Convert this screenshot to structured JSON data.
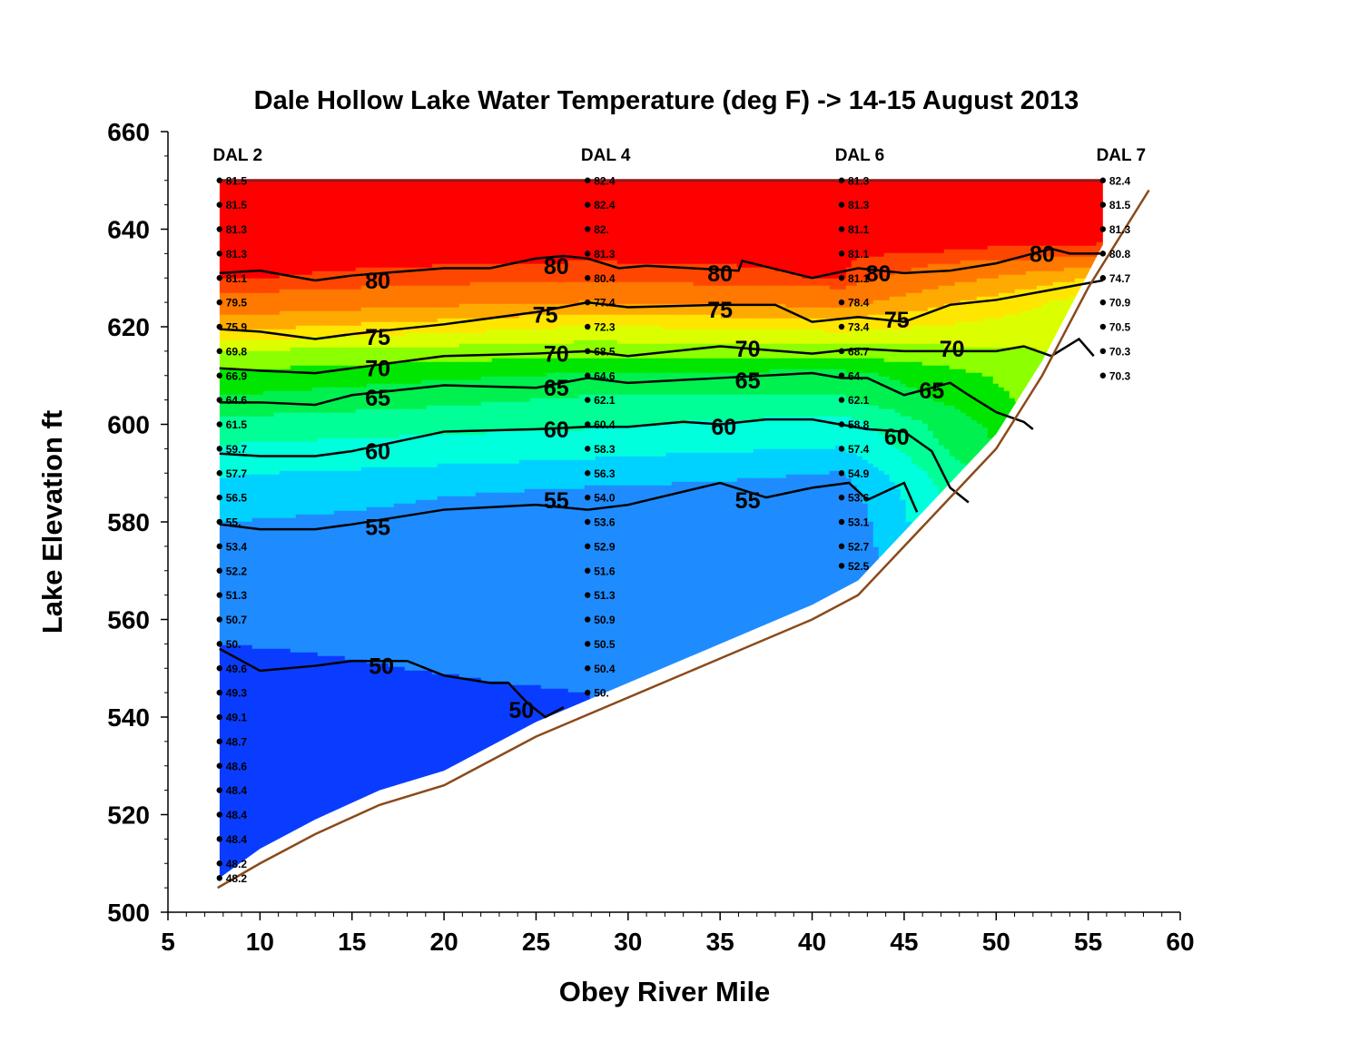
{
  "chart_data": {
    "type": "contour",
    "title": "Dale Hollow Lake Water Temperature (deg F)  ->  14-15 August 2013",
    "xlabel": "Obey River Mile",
    "ylabel": "Lake  Elevation  ft",
    "xlim": [
      5,
      60
    ],
    "ylim": [
      500,
      660
    ],
    "x_ticks": [
      5,
      10,
      15,
      20,
      25,
      30,
      35,
      40,
      45,
      50,
      55,
      60
    ],
    "y_ticks": [
      500,
      520,
      540,
      560,
      580,
      600,
      620,
      640,
      660
    ],
    "x_tick_labels": [
      "5",
      "10",
      "15",
      "20",
      "25",
      "30",
      "35",
      "40",
      "45",
      "50",
      "55",
      "60"
    ],
    "y_tick_labels": [
      "500",
      "520",
      "540",
      "560",
      "580",
      "600",
      "620",
      "640",
      "660"
    ],
    "color_bands": [
      {
        "min": 0,
        "max": 50,
        "color": "#0a3cff"
      },
      {
        "min": 50,
        "max": 55,
        "color": "#1e8cff"
      },
      {
        "min": 55,
        "max": 57.5,
        "color": "#00d2ff"
      },
      {
        "min": 57.5,
        "max": 60,
        "color": "#00ffdc"
      },
      {
        "min": 60,
        "max": 62.5,
        "color": "#00ff96"
      },
      {
        "min": 62.5,
        "max": 65,
        "color": "#00f050"
      },
      {
        "min": 65,
        "max": 67.5,
        "color": "#00e600"
      },
      {
        "min": 67.5,
        "max": 70,
        "color": "#8cff00"
      },
      {
        "min": 70,
        "max": 72.5,
        "color": "#dcff00"
      },
      {
        "min": 72.5,
        "max": 75,
        "color": "#ffe600"
      },
      {
        "min": 75,
        "max": 77.5,
        "color": "#ffaa00"
      },
      {
        "min": 77.5,
        "max": 80,
        "color": "#ff7800"
      },
      {
        "min": 80,
        "max": 81,
        "color": "#ff4600"
      },
      {
        "min": 81,
        "max": 90,
        "color": "#ff0000"
      }
    ],
    "bottom_profile": {
      "x": [
        7.7,
        10,
        13,
        16.5,
        20,
        25,
        27.5,
        30,
        35,
        40,
        42.5,
        45,
        47.5,
        50,
        52.5,
        55,
        58.3
      ],
      "elev": [
        505,
        510,
        516,
        522,
        526,
        536,
        540,
        544,
        552,
        560,
        565,
        575,
        585,
        595,
        610,
        628,
        648
      ]
    },
    "stations": [
      {
        "name": "DAL 2",
        "river_mile": 7.8,
        "elevations": [
          650,
          645,
          640,
          635,
          630,
          625,
          620,
          615,
          610,
          605,
          600,
          595,
          590,
          585,
          580,
          575,
          570,
          565,
          560,
          555,
          550,
          545,
          540,
          535,
          530,
          525,
          520,
          515,
          510,
          507
        ],
        "labels": [
          "81.5",
          "81.5",
          "81.3",
          "81.3",
          "81.1",
          "79.5",
          "75.9",
          "69.8",
          "66.9",
          "64.6",
          "61.5",
          "59.7",
          "57.7",
          "56.5",
          "55.",
          "53.4",
          "52.2",
          "51.3",
          "50.7",
          "50.",
          "49.6",
          "49.3",
          "49.1",
          "48.7",
          "48.6",
          "48.4",
          "48.4",
          "48.4",
          "48.2",
          "48.2"
        ]
      },
      {
        "name": "DAL 4",
        "river_mile": 27.8,
        "elevations": [
          650,
          645,
          640,
          635,
          630,
          625,
          620,
          615,
          610,
          605,
          600,
          595,
          590,
          585,
          580,
          575,
          570,
          565,
          560,
          555,
          550,
          545
        ],
        "labels": [
          "82.4",
          "82.4",
          "82.",
          "81.3",
          "80.4",
          "77.4",
          "72.3",
          "68.5",
          "64.6",
          "62.1",
          "60.4",
          "58.3",
          "56.3",
          "54.0",
          "53.6",
          "52.9",
          "51.6",
          "51.3",
          "50.9",
          "50.5",
          "50.4",
          "50."
        ]
      },
      {
        "name": "DAL 6",
        "river_mile": 41.6,
        "elevations": [
          650,
          645,
          640,
          635,
          630,
          625,
          620,
          615,
          610,
          605,
          600,
          595,
          590,
          585,
          580,
          575,
          571
        ],
        "labels": [
          "81.3",
          "81.3",
          "81.1",
          "81.1",
          "81.1",
          "78.4",
          "73.4",
          "68.7",
          "64.",
          "62.1",
          "58.8",
          "57.4",
          "54.9",
          "53.6",
          "53.1",
          "52.7",
          "52.5"
        ]
      },
      {
        "name": "DAL 7",
        "river_mile": 55.8,
        "elevations": [
          650,
          645,
          640,
          635,
          630,
          625,
          620,
          615,
          610
        ],
        "labels": [
          "82.4",
          "81.5",
          "81.3",
          "80.8",
          "74.7",
          "70.9",
          "70.5",
          "70.3",
          "70.3"
        ]
      }
    ],
    "contours": [
      {
        "level": 80,
        "x": [
          7.8,
          10,
          13,
          15,
          20,
          22.5,
          25,
          26.5,
          27.8,
          29.5,
          31,
          36,
          36.2,
          40,
          42.5,
          45,
          47.5,
          50,
          53,
          54,
          55.8
        ],
        "elev": [
          631,
          631.5,
          629.5,
          630.5,
          632,
          632,
          634,
          634.5,
          634,
          632,
          632.5,
          631.5,
          633.5,
          630,
          632,
          631,
          631.5,
          633,
          636,
          635,
          635
        ]
      },
      {
        "level": 75,
        "x": [
          7.8,
          10,
          13,
          15,
          20,
          25,
          27.8,
          30,
          35,
          38,
          40,
          42.5,
          45,
          47.5,
          50,
          55.8
        ],
        "elev": [
          619.5,
          619,
          617.5,
          618.5,
          620.5,
          623,
          625,
          624,
          624.5,
          624.5,
          621,
          622,
          621,
          624.5,
          625.5,
          629.5
        ]
      },
      {
        "level": 70,
        "x": [
          7.8,
          10,
          13,
          15,
          20,
          25,
          27.8,
          30,
          35,
          40,
          42.5,
          45,
          50,
          51.5,
          53,
          54.5,
          55.3
        ],
        "elev": [
          611.5,
          611,
          610.5,
          611.5,
          614,
          614.5,
          615,
          614,
          616,
          614.5,
          615.5,
          615,
          615,
          616,
          614,
          617.5,
          614
        ]
      },
      {
        "level": 65,
        "x": [
          7.8,
          10,
          13,
          15,
          20,
          25,
          27.8,
          30,
          35,
          40,
          41.6,
          43,
          45,
          47.5,
          48.5,
          50,
          51.5,
          52
        ],
        "elev": [
          604.5,
          604.5,
          604,
          606,
          608,
          607.5,
          609.5,
          608.5,
          609.5,
          610.5,
          609.5,
          609.5,
          606,
          608.5,
          606,
          602.5,
          600.5,
          599
        ]
      },
      {
        "level": 60,
        "x": [
          7.8,
          10,
          13,
          15,
          20,
          25,
          27.8,
          30,
          33,
          35,
          37.5,
          40,
          41.5,
          43,
          45,
          46.5,
          47.5,
          48.5
        ],
        "elev": [
          594,
          593.5,
          593.5,
          594.5,
          598.5,
          599,
          599.5,
          599.5,
          600.5,
          600,
          601,
          601,
          600,
          599,
          598.5,
          594.5,
          587,
          584
        ]
      },
      {
        "level": 55,
        "x": [
          7.8,
          10,
          13,
          15,
          20,
          25,
          27.8,
          30,
          35,
          37.5,
          40,
          42,
          43,
          45,
          45.7
        ],
        "elev": [
          579.5,
          578.5,
          578.5,
          579.5,
          582.5,
          583.5,
          582.5,
          583.5,
          588,
          585,
          587,
          588,
          584.5,
          588,
          582
        ]
      },
      {
        "level": 50,
        "x": [
          7.8,
          10,
          13,
          15,
          18,
          20,
          22.5,
          23.5,
          24.5,
          25.5,
          26.5
        ],
        "elev": [
          554,
          549.5,
          550.5,
          551.5,
          551.5,
          548.5,
          547,
          547,
          543,
          540,
          542
        ]
      }
    ],
    "contour_labels": [
      {
        "text": "80",
        "x": 16.4,
        "elev": 629.5
      },
      {
        "text": "80",
        "x": 26.1,
        "elev": 632.5
      },
      {
        "text": "80",
        "x": 35,
        "elev": 631
      },
      {
        "text": "80",
        "x": 43.6,
        "elev": 631
      },
      {
        "text": "80",
        "x": 52.5,
        "elev": 635
      },
      {
        "text": "75",
        "x": 16.4,
        "elev": 618
      },
      {
        "text": "75",
        "x": 25.5,
        "elev": 622.5
      },
      {
        "text": "75",
        "x": 35,
        "elev": 623.5
      },
      {
        "text": "75",
        "x": 44.6,
        "elev": 621.5
      },
      {
        "text": "70",
        "x": 16.4,
        "elev": 611.5
      },
      {
        "text": "70",
        "x": 26.1,
        "elev": 614.5
      },
      {
        "text": "70",
        "x": 36.5,
        "elev": 615.5
      },
      {
        "text": "70",
        "x": 47.6,
        "elev": 615.5
      },
      {
        "text": "65",
        "x": 16.4,
        "elev": 605.5
      },
      {
        "text": "65",
        "x": 26.1,
        "elev": 607.5
      },
      {
        "text": "65",
        "x": 36.5,
        "elev": 609
      },
      {
        "text": "65",
        "x": 46.5,
        "elev": 607
      },
      {
        "text": "60",
        "x": 16.4,
        "elev": 594.5
      },
      {
        "text": "60",
        "x": 26.1,
        "elev": 599
      },
      {
        "text": "60",
        "x": 35.2,
        "elev": 599.5
      },
      {
        "text": "60",
        "x": 44.6,
        "elev": 597.5
      },
      {
        "text": "55",
        "x": 16.4,
        "elev": 579
      },
      {
        "text": "55",
        "x": 26.1,
        "elev": 584.5
      },
      {
        "text": "55",
        "x": 36.5,
        "elev": 584.5
      },
      {
        "text": "50",
        "x": 16.6,
        "elev": 550.5
      },
      {
        "text": "50",
        "x": 24.2,
        "elev": 541.5
      }
    ]
  }
}
